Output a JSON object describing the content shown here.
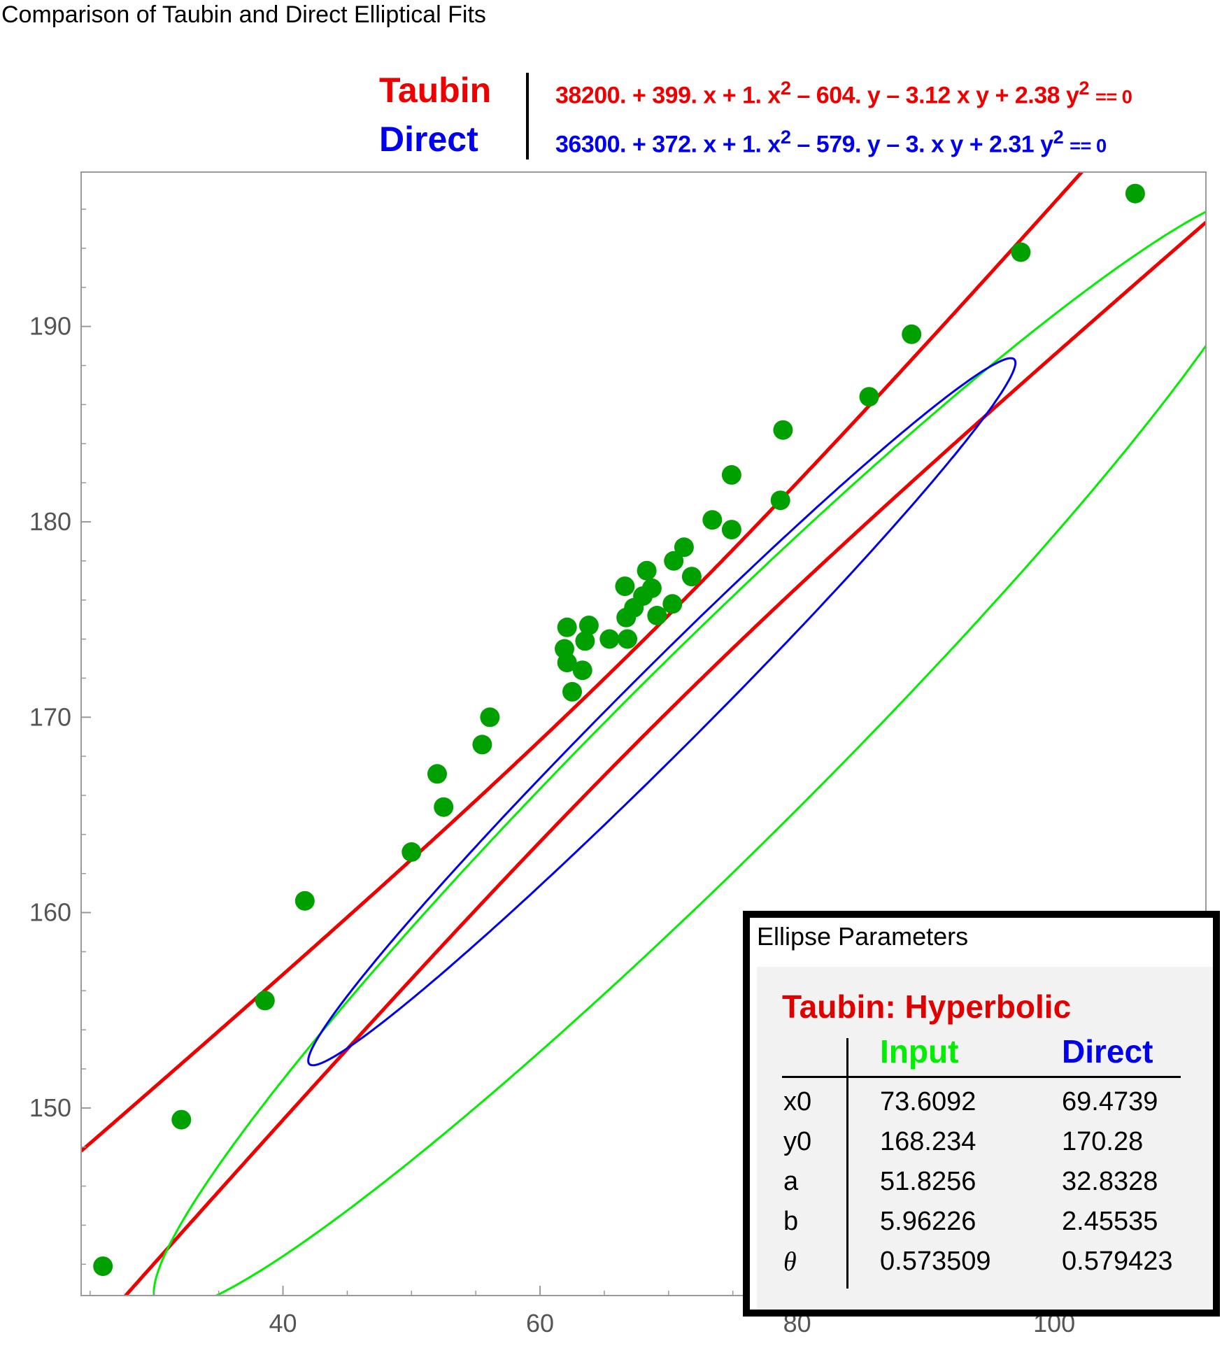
{
  "title": "Comparison of Taubin and Direct Elliptical Fits",
  "legend": [
    {
      "name": "Taubin",
      "color": "#ee0000",
      "equation": {
        "c0": "38200.",
        "s1": "+",
        "c1": "399.",
        "v1": "x",
        "s2": "+",
        "c2": "1.",
        "v2": "x",
        "p2": "2",
        "s3": "–",
        "c3": "604.",
        "v3": "y",
        "s4": "–",
        "c4": "3.12",
        "v4": "x y",
        "s5": "+",
        "c5": "2.38",
        "v5": "y",
        "p5": "2",
        "eq": "== 0"
      }
    },
    {
      "name": "Direct",
      "color": "#0000ee",
      "equation": {
        "c0": "36300.",
        "s1": "+",
        "c1": "372.",
        "v1": "x",
        "s2": "+",
        "c2": "1.",
        "v2": "x",
        "p2": "2",
        "s3": "–",
        "c3": "579.",
        "v3": "y",
        "s4": "–",
        "c4": "3.",
        "v4": "x y",
        "s5": "+",
        "c5": "2.31",
        "v5": "y",
        "p5": "2",
        "eq": "== 0"
      }
    }
  ],
  "params": {
    "title": "Ellipse Parameters",
    "heading": "Taubin: Hyperbolic",
    "columns": [
      "Input",
      "Direct"
    ],
    "column_colors": [
      "#00ee00",
      "#0000ee"
    ],
    "rows": [
      {
        "name": "x0",
        "input": "73.6092",
        "direct": "69.4739"
      },
      {
        "name": "y0",
        "input": "168.234",
        "direct": "170.28"
      },
      {
        "name": "a",
        "input": "51.8256",
        "direct": "32.8328"
      },
      {
        "name": "b",
        "input": "5.96226",
        "direct": "2.45535"
      },
      {
        "name": "θ",
        "input": "0.573509",
        "direct": "0.579423"
      }
    ]
  },
  "chart_data": {
    "type": "scatter",
    "xlim": [
      24.3,
      111.8
    ],
    "ylim": [
      140.4,
      197.9
    ],
    "xticks": [
      40,
      60,
      80,
      100
    ],
    "yticks": [
      150,
      160,
      170,
      180,
      190
    ],
    "xtick_labels": [
      "40",
      "60",
      "80",
      "100"
    ],
    "ytick_labels": [
      "150",
      "160",
      "170",
      "180",
      "190"
    ],
    "grid": false,
    "point_color": "#00a000",
    "points": [
      [
        26.0,
        141.9
      ],
      [
        32.1,
        149.4
      ],
      [
        38.6,
        155.5
      ],
      [
        41.7,
        160.6
      ],
      [
        50.0,
        163.1
      ],
      [
        52.0,
        167.1
      ],
      [
        52.5,
        165.4
      ],
      [
        55.5,
        168.6
      ],
      [
        56.1,
        170.0
      ],
      [
        62.5,
        171.3
      ],
      [
        62.1,
        172.8
      ],
      [
        61.9,
        173.5
      ],
      [
        62.1,
        174.6
      ],
      [
        63.3,
        172.4
      ],
      [
        63.5,
        173.9
      ],
      [
        63.8,
        174.7
      ],
      [
        65.4,
        174.0
      ],
      [
        66.8,
        174.0
      ],
      [
        66.7,
        175.1
      ],
      [
        66.6,
        176.7
      ],
      [
        67.3,
        175.6
      ],
      [
        68.0,
        176.2
      ],
      [
        68.3,
        177.5
      ],
      [
        68.7,
        176.6
      ],
      [
        69.1,
        175.2
      ],
      [
        70.3,
        175.8
      ],
      [
        70.4,
        178.0
      ],
      [
        71.2,
        178.7
      ],
      [
        71.8,
        177.2
      ],
      [
        73.4,
        180.1
      ],
      [
        74.9,
        182.4
      ],
      [
        74.9,
        179.6
      ],
      [
        78.7,
        181.1
      ],
      [
        78.9,
        184.7
      ],
      [
        85.6,
        186.4
      ],
      [
        88.9,
        189.6
      ],
      [
        97.4,
        193.8
      ],
      [
        106.3,
        196.8
      ]
    ],
    "input_ellipse": {
      "x0": 73.6092,
      "y0": 168.234,
      "a": 51.8256,
      "b": 5.96226,
      "theta": 0.573509,
      "color": "#00ee00"
    },
    "direct_ellipse": {
      "x0": 69.4739,
      "y0": 170.28,
      "a": 32.8328,
      "b": 2.45535,
      "theta": 0.579423,
      "color": "#0000ee"
    },
    "taubin_conic": {
      "A": 1,
      "B": -3.12,
      "C": 2.38,
      "D": 399,
      "E": -604,
      "F": 38200,
      "color": "#ee0000"
    }
  }
}
